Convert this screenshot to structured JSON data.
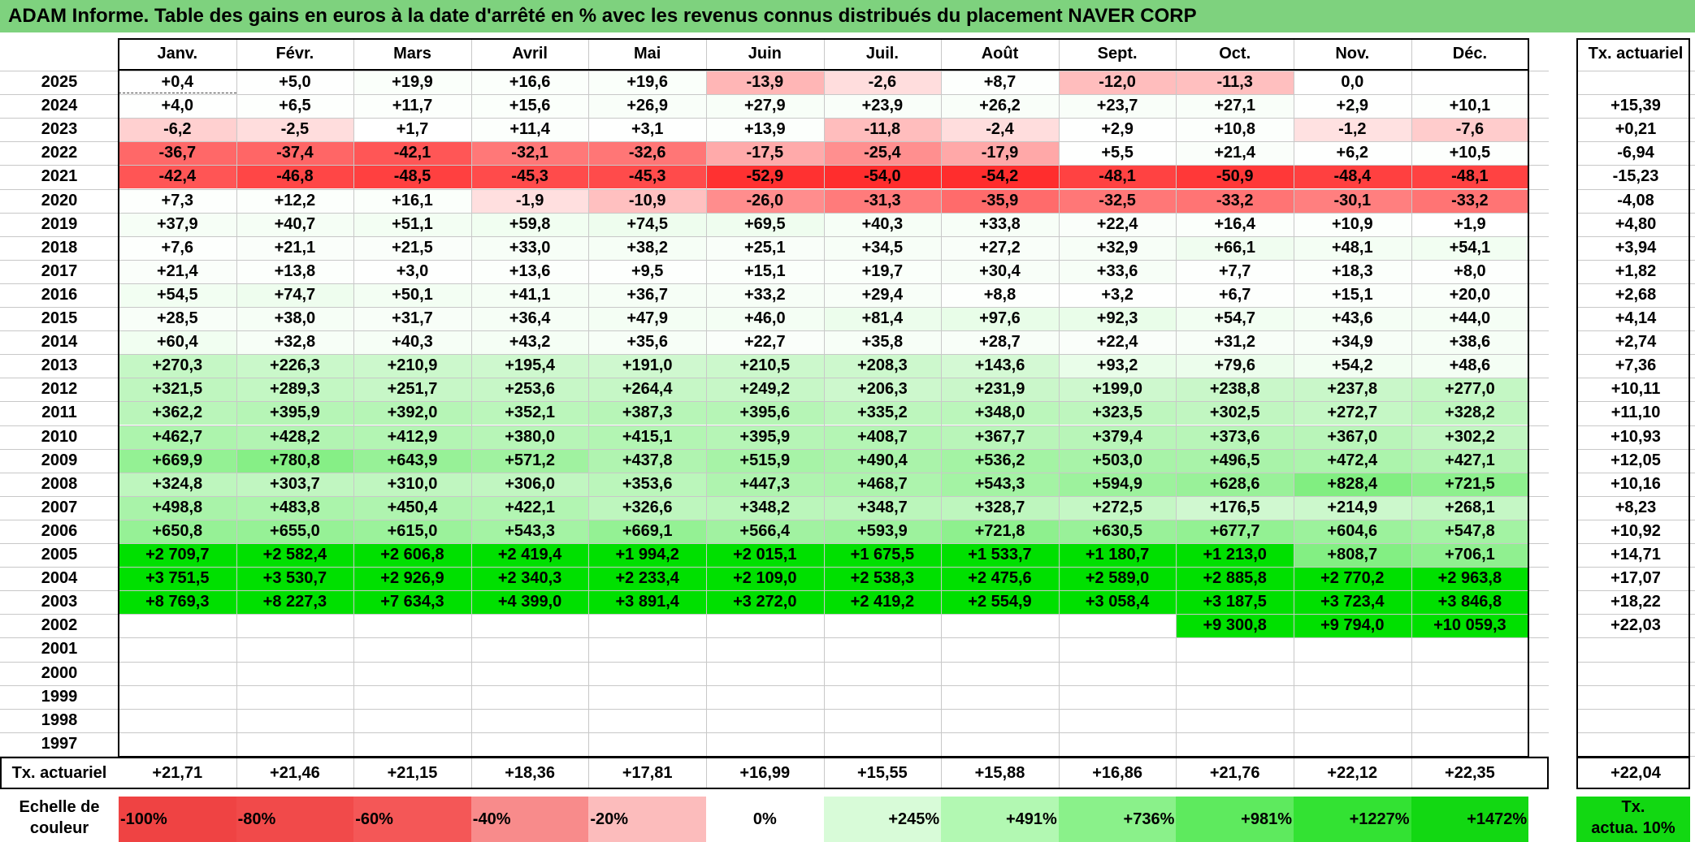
{
  "title": "ADAM Informe. Table des gains en euros à la date d'arrêté en % avec les revenus connus distribués du placement NAVER CORP",
  "months": [
    "Janv.",
    "Févr.",
    "Mars",
    "Avril",
    "Mai",
    "Juin",
    "Juil.",
    "Août",
    "Sept.",
    "Oct.",
    "Nov.",
    "Déc."
  ],
  "annual_header": "Tx. actuariel",
  "rows": [
    {
      "year": "2025",
      "values": [
        "+0,4",
        "+5,0",
        "+19,9",
        "+16,6",
        "+19,6",
        "-13,9",
        "-2,6",
        "+8,7",
        "-12,0",
        "-11,3",
        "0,0",
        ""
      ],
      "annual": ""
    },
    {
      "year": "2024",
      "values": [
        "+4,0",
        "+6,5",
        "+11,7",
        "+15,6",
        "+26,9",
        "+27,9",
        "+23,9",
        "+26,2",
        "+23,7",
        "+27,1",
        "+2,9",
        "+10,1"
      ],
      "annual": "+15,39"
    },
    {
      "year": "2023",
      "values": [
        "-6,2",
        "-2,5",
        "+1,7",
        "+11,4",
        "+3,1",
        "+13,9",
        "-11,8",
        "-2,4",
        "+2,9",
        "+10,8",
        "-1,2",
        "-7,6"
      ],
      "annual": "+0,21"
    },
    {
      "year": "2022",
      "values": [
        "-36,7",
        "-37,4",
        "-42,1",
        "-32,1",
        "-32,6",
        "-17,5",
        "-25,4",
        "-17,9",
        "+5,5",
        "+21,4",
        "+6,2",
        "+10,5"
      ],
      "annual": "-6,94"
    },
    {
      "year": "2021",
      "values": [
        "-42,4",
        "-46,8",
        "-48,5",
        "-45,3",
        "-45,3",
        "-52,9",
        "-54,0",
        "-54,2",
        "-48,1",
        "-50,9",
        "-48,4",
        "-48,1"
      ],
      "annual": "-15,23"
    },
    {
      "year": "2020",
      "values": [
        "+7,3",
        "+12,2",
        "+16,1",
        "-1,9",
        "-10,9",
        "-26,0",
        "-31,3",
        "-35,9",
        "-32,5",
        "-33,2",
        "-30,1",
        "-33,2"
      ],
      "annual": "-4,08"
    },
    {
      "year": "2019",
      "values": [
        "+37,9",
        "+40,7",
        "+51,1",
        "+59,8",
        "+74,5",
        "+69,5",
        "+40,3",
        "+33,8",
        "+22,4",
        "+16,4",
        "+10,9",
        "+1,9"
      ],
      "annual": "+4,80"
    },
    {
      "year": "2018",
      "values": [
        "+7,6",
        "+21,1",
        "+21,5",
        "+33,0",
        "+38,2",
        "+25,1",
        "+34,5",
        "+27,2",
        "+32,9",
        "+66,1",
        "+48,1",
        "+54,1"
      ],
      "annual": "+3,94"
    },
    {
      "year": "2017",
      "values": [
        "+21,4",
        "+13,8",
        "+3,0",
        "+13,6",
        "+9,5",
        "+15,1",
        "+19,7",
        "+30,4",
        "+33,6",
        "+7,7",
        "+18,3",
        "+8,0"
      ],
      "annual": "+1,82"
    },
    {
      "year": "2016",
      "values": [
        "+54,5",
        "+74,7",
        "+50,1",
        "+41,1",
        "+36,7",
        "+33,2",
        "+29,4",
        "+8,8",
        "+3,2",
        "+6,7",
        "+15,1",
        "+20,0"
      ],
      "annual": "+2,68"
    },
    {
      "year": "2015",
      "values": [
        "+28,5",
        "+38,0",
        "+31,7",
        "+36,4",
        "+47,9",
        "+46,0",
        "+81,4",
        "+97,6",
        "+92,3",
        "+54,7",
        "+43,6",
        "+44,0"
      ],
      "annual": "+4,14"
    },
    {
      "year": "2014",
      "values": [
        "+60,4",
        "+32,8",
        "+40,3",
        "+43,2",
        "+35,6",
        "+22,7",
        "+35,8",
        "+28,7",
        "+22,4",
        "+31,2",
        "+34,9",
        "+38,6"
      ],
      "annual": "+2,74"
    },
    {
      "year": "2013",
      "values": [
        "+270,3",
        "+226,3",
        "+210,9",
        "+195,4",
        "+191,0",
        "+210,5",
        "+208,3",
        "+143,6",
        "+93,2",
        "+79,6",
        "+54,2",
        "+48,6"
      ],
      "annual": "+7,36"
    },
    {
      "year": "2012",
      "values": [
        "+321,5",
        "+289,3",
        "+251,7",
        "+253,6",
        "+264,4",
        "+249,2",
        "+206,3",
        "+231,9",
        "+199,0",
        "+238,8",
        "+237,8",
        "+277,0"
      ],
      "annual": "+10,11"
    },
    {
      "year": "2011",
      "values": [
        "+362,2",
        "+395,9",
        "+392,0",
        "+352,1",
        "+387,3",
        "+395,6",
        "+335,2",
        "+348,0",
        "+323,5",
        "+302,5",
        "+272,7",
        "+328,2"
      ],
      "annual": "+11,10"
    },
    {
      "year": "2010",
      "values": [
        "+462,7",
        "+428,2",
        "+412,9",
        "+380,0",
        "+415,1",
        "+395,9",
        "+408,7",
        "+367,7",
        "+379,4",
        "+373,6",
        "+367,0",
        "+302,2"
      ],
      "annual": "+10,93"
    },
    {
      "year": "2009",
      "values": [
        "+669,9",
        "+780,8",
        "+643,9",
        "+571,2",
        "+437,8",
        "+515,9",
        "+490,4",
        "+536,2",
        "+503,0",
        "+496,5",
        "+472,4",
        "+427,1"
      ],
      "annual": "+12,05"
    },
    {
      "year": "2008",
      "values": [
        "+324,8",
        "+303,7",
        "+310,0",
        "+306,0",
        "+353,6",
        "+447,3",
        "+468,7",
        "+543,3",
        "+594,9",
        "+628,6",
        "+828,4",
        "+721,5"
      ],
      "annual": "+10,16"
    },
    {
      "year": "2007",
      "values": [
        "+498,8",
        "+483,8",
        "+450,4",
        "+422,1",
        "+326,6",
        "+348,2",
        "+348,7",
        "+328,7",
        "+272,5",
        "+176,5",
        "+214,9",
        "+268,1"
      ],
      "annual": "+8,23"
    },
    {
      "year": "2006",
      "values": [
        "+650,8",
        "+655,0",
        "+615,0",
        "+543,3",
        "+669,1",
        "+566,4",
        "+593,9",
        "+721,8",
        "+630,5",
        "+677,7",
        "+604,6",
        "+547,8"
      ],
      "annual": "+10,92"
    },
    {
      "year": "2005",
      "values": [
        "+2 709,7",
        "+2 582,4",
        "+2 606,8",
        "+2 419,4",
        "+1 994,2",
        "+2 015,1",
        "+1 675,5",
        "+1 533,7",
        "+1 180,7",
        "+1 213,0",
        "+808,7",
        "+706,1"
      ],
      "annual": "+14,71"
    },
    {
      "year": "2004",
      "values": [
        "+3 751,5",
        "+3 530,7",
        "+2 926,9",
        "+2 340,3",
        "+2 233,4",
        "+2 109,0",
        "+2 538,3",
        "+2 475,6",
        "+2 589,0",
        "+2 885,8",
        "+2 770,2",
        "+2 963,8"
      ],
      "annual": "+17,07"
    },
    {
      "year": "2003",
      "values": [
        "+8 769,3",
        "+8 227,3",
        "+7 634,3",
        "+4 399,0",
        "+3 891,4",
        "+3 272,0",
        "+2 419,2",
        "+2 554,9",
        "+3 058,4",
        "+3 187,5",
        "+3 723,4",
        "+3 846,8"
      ],
      "annual": "+18,22"
    },
    {
      "year": "2002",
      "values": [
        "",
        "",
        "",
        "",
        "",
        "",
        "",
        "",
        "",
        "+9 300,8",
        "+9 794,0",
        "+10 059,3"
      ],
      "annual": "+22,03"
    },
    {
      "year": "2001",
      "values": [
        "",
        "",
        "",
        "",
        "",
        "",
        "",
        "",
        "",
        "",
        "",
        ""
      ],
      "annual": ""
    },
    {
      "year": "2000",
      "values": [
        "",
        "",
        "",
        "",
        "",
        "",
        "",
        "",
        "",
        "",
        "",
        ""
      ],
      "annual": ""
    },
    {
      "year": "1999",
      "values": [
        "",
        "",
        "",
        "",
        "",
        "",
        "",
        "",
        "",
        "",
        "",
        ""
      ],
      "annual": ""
    },
    {
      "year": "1998",
      "values": [
        "",
        "",
        "",
        "",
        "",
        "",
        "",
        "",
        "",
        "",
        "",
        ""
      ],
      "annual": ""
    },
    {
      "year": "1997",
      "values": [
        "",
        "",
        "",
        "",
        "",
        "",
        "",
        "",
        "",
        "",
        "",
        ""
      ],
      "annual": ""
    }
  ],
  "footer": {
    "label": "Tx. actuariel",
    "values": [
      "+21,71",
      "+21,46",
      "+21,15",
      "+18,36",
      "+17,81",
      "+16,99",
      "+15,55",
      "+15,88",
      "+16,86",
      "+21,76",
      "+22,12",
      "+22,35"
    ],
    "annual": "+22,04"
  },
  "legend": {
    "label_line1": "Echelle de",
    "label_line2": "couleur",
    "steps": [
      {
        "text": "-100%",
        "color": "#ef4343"
      },
      {
        "text": "-80%",
        "color": "#f14a4a"
      },
      {
        "text": "-60%",
        "color": "#f45757"
      },
      {
        "text": "-40%",
        "color": "#f88b8b"
      },
      {
        "text": "-20%",
        "color": "#fcbcbc"
      },
      {
        "text": "0%",
        "color": "#ffffff"
      },
      {
        "text": "+245%",
        "color": "#d8fbd8"
      },
      {
        "text": "+491%",
        "color": "#b2f8b2"
      },
      {
        "text": "+736%",
        "color": "#8af18a"
      },
      {
        "text": "+981%",
        "color": "#5eea5e"
      },
      {
        "text": "+1227%",
        "color": "#33e233"
      },
      {
        "text": "+1472%",
        "color": "#12d812"
      }
    ],
    "box_line1": "Tx.",
    "box_line2": "actua. 10%",
    "box_color": "#12d812"
  },
  "colors": {
    "title_bg": "#7ed27e",
    "neg_max": "#ff2a2a",
    "pos_max": "#00e000",
    "grid_line": "#c8c8c8"
  }
}
